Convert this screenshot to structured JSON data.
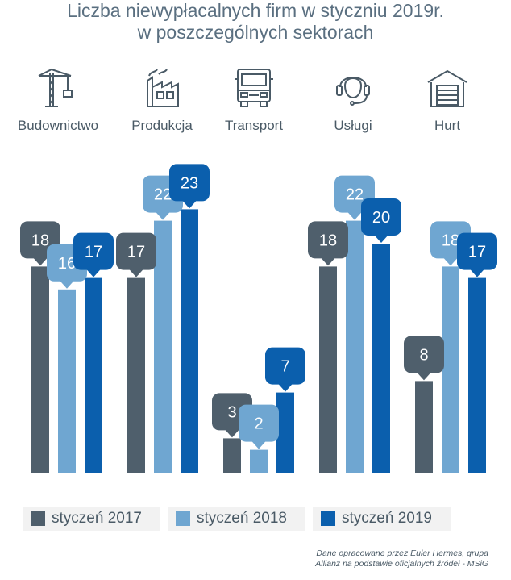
{
  "title_line1": "Liczba niewypłacalnych firm w styczniu 2019r.",
  "title_line2": "w poszczególnych sektorach",
  "colors": {
    "s2017": "#4f5f6c",
    "s2018": "#6fa6d1",
    "s2019": "#0b5fad",
    "icon": "#4a5a66"
  },
  "icons": [
    "crane-icon",
    "factory-icon",
    "truck-icon",
    "headset-icon",
    "warehouse-icon"
  ],
  "chart_data": {
    "type": "bar",
    "title": "Liczba niewypłacalnych firm w styczniu 2019r. w poszczególnych sektorach",
    "categories": [
      "Budownictwo",
      "Produkcja",
      "Transport",
      "Usługi",
      "Hurt"
    ],
    "series": [
      {
        "name": "styczeń 2017",
        "values": [
          18,
          17,
          3,
          18,
          8
        ]
      },
      {
        "name": "styczeń 2018",
        "values": [
          16,
          22,
          2,
          22,
          18
        ]
      },
      {
        "name": "styczeń 2019",
        "values": [
          17,
          23,
          7,
          20,
          17
        ]
      }
    ],
    "xlabel": "",
    "ylabel": "",
    "ylim": [
      0,
      28
    ],
    "grid": false,
    "legend": "bottom"
  },
  "source_line1": "Dane opracowane przez Euler Hermes, grupa",
  "source_line2": "Allianz na podstawie oficjalnych źródeł  - MSiG"
}
